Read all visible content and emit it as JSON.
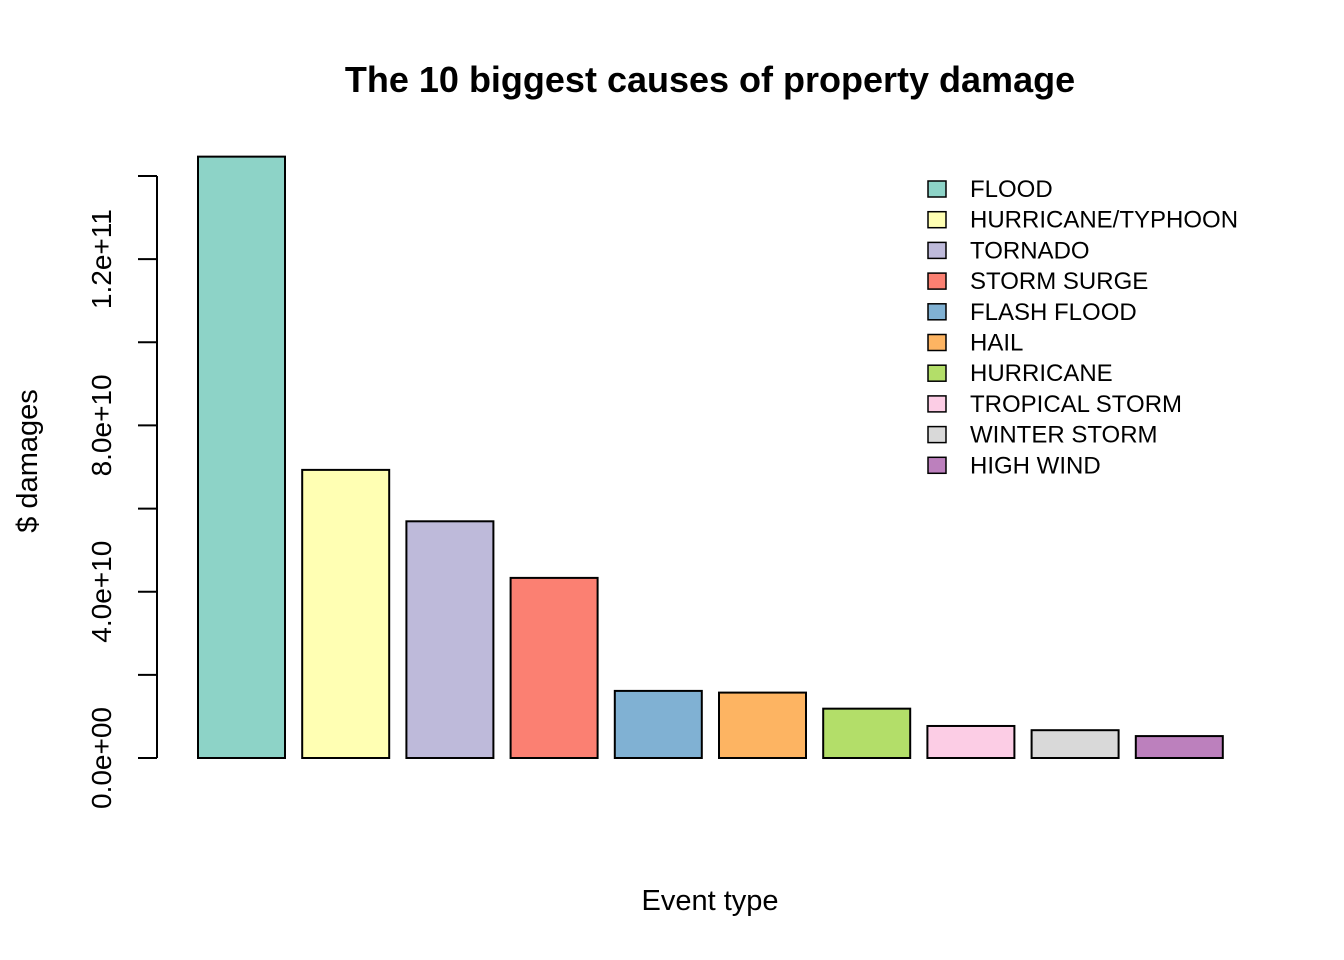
{
  "chart_data": {
    "type": "bar",
    "title": "The 10 biggest causes of property damage",
    "xlabel": "Event type",
    "ylabel": "$ damages",
    "categories": [
      "FLOOD",
      "HURRICANE/TYPHOON",
      "TORNADO",
      "STORM SURGE",
      "FLASH FLOOD",
      "HAIL",
      "HURRICANE",
      "TROPICAL STORM",
      "WINTER STORM",
      "HIGH WIND"
    ],
    "values": [
      144657709807,
      69305840000,
      56937160779,
      43323536000,
      16140812067,
      15732267048,
      11868319010,
      7703890550,
      6688497251,
      5270046295
    ],
    "colors": [
      "#8DD3C7",
      "#FFFFB3",
      "#BEBADA",
      "#FB8072",
      "#80B1D3",
      "#FDB462",
      "#B3DE69",
      "#FCCDE5",
      "#D9D9D9",
      "#BC80BD"
    ],
    "ylim": [
      0,
      140000000000
    ],
    "yticks": [
      0,
      20000000000,
      40000000000,
      60000000000,
      80000000000,
      100000000000,
      120000000000,
      140000000000
    ],
    "ytick_labels": [
      {
        "value": 0,
        "label": "0.0e+00"
      },
      {
        "value": 40000000000,
        "label": "4.0e+10"
      },
      {
        "value": 80000000000,
        "label": "8.0e+10"
      },
      {
        "value": 120000000000,
        "label": "1.2e+11"
      }
    ],
    "legend": {
      "position": "top-right",
      "entries": [
        "FLOOD",
        "HURRICANE/TYPHOON",
        "TORNADO",
        "STORM SURGE",
        "FLASH FLOOD",
        "HAIL",
        "HURRICANE",
        "TROPICAL STORM",
        "WINTER STORM",
        "HIGH WIND"
      ]
    },
    "grid": false
  }
}
